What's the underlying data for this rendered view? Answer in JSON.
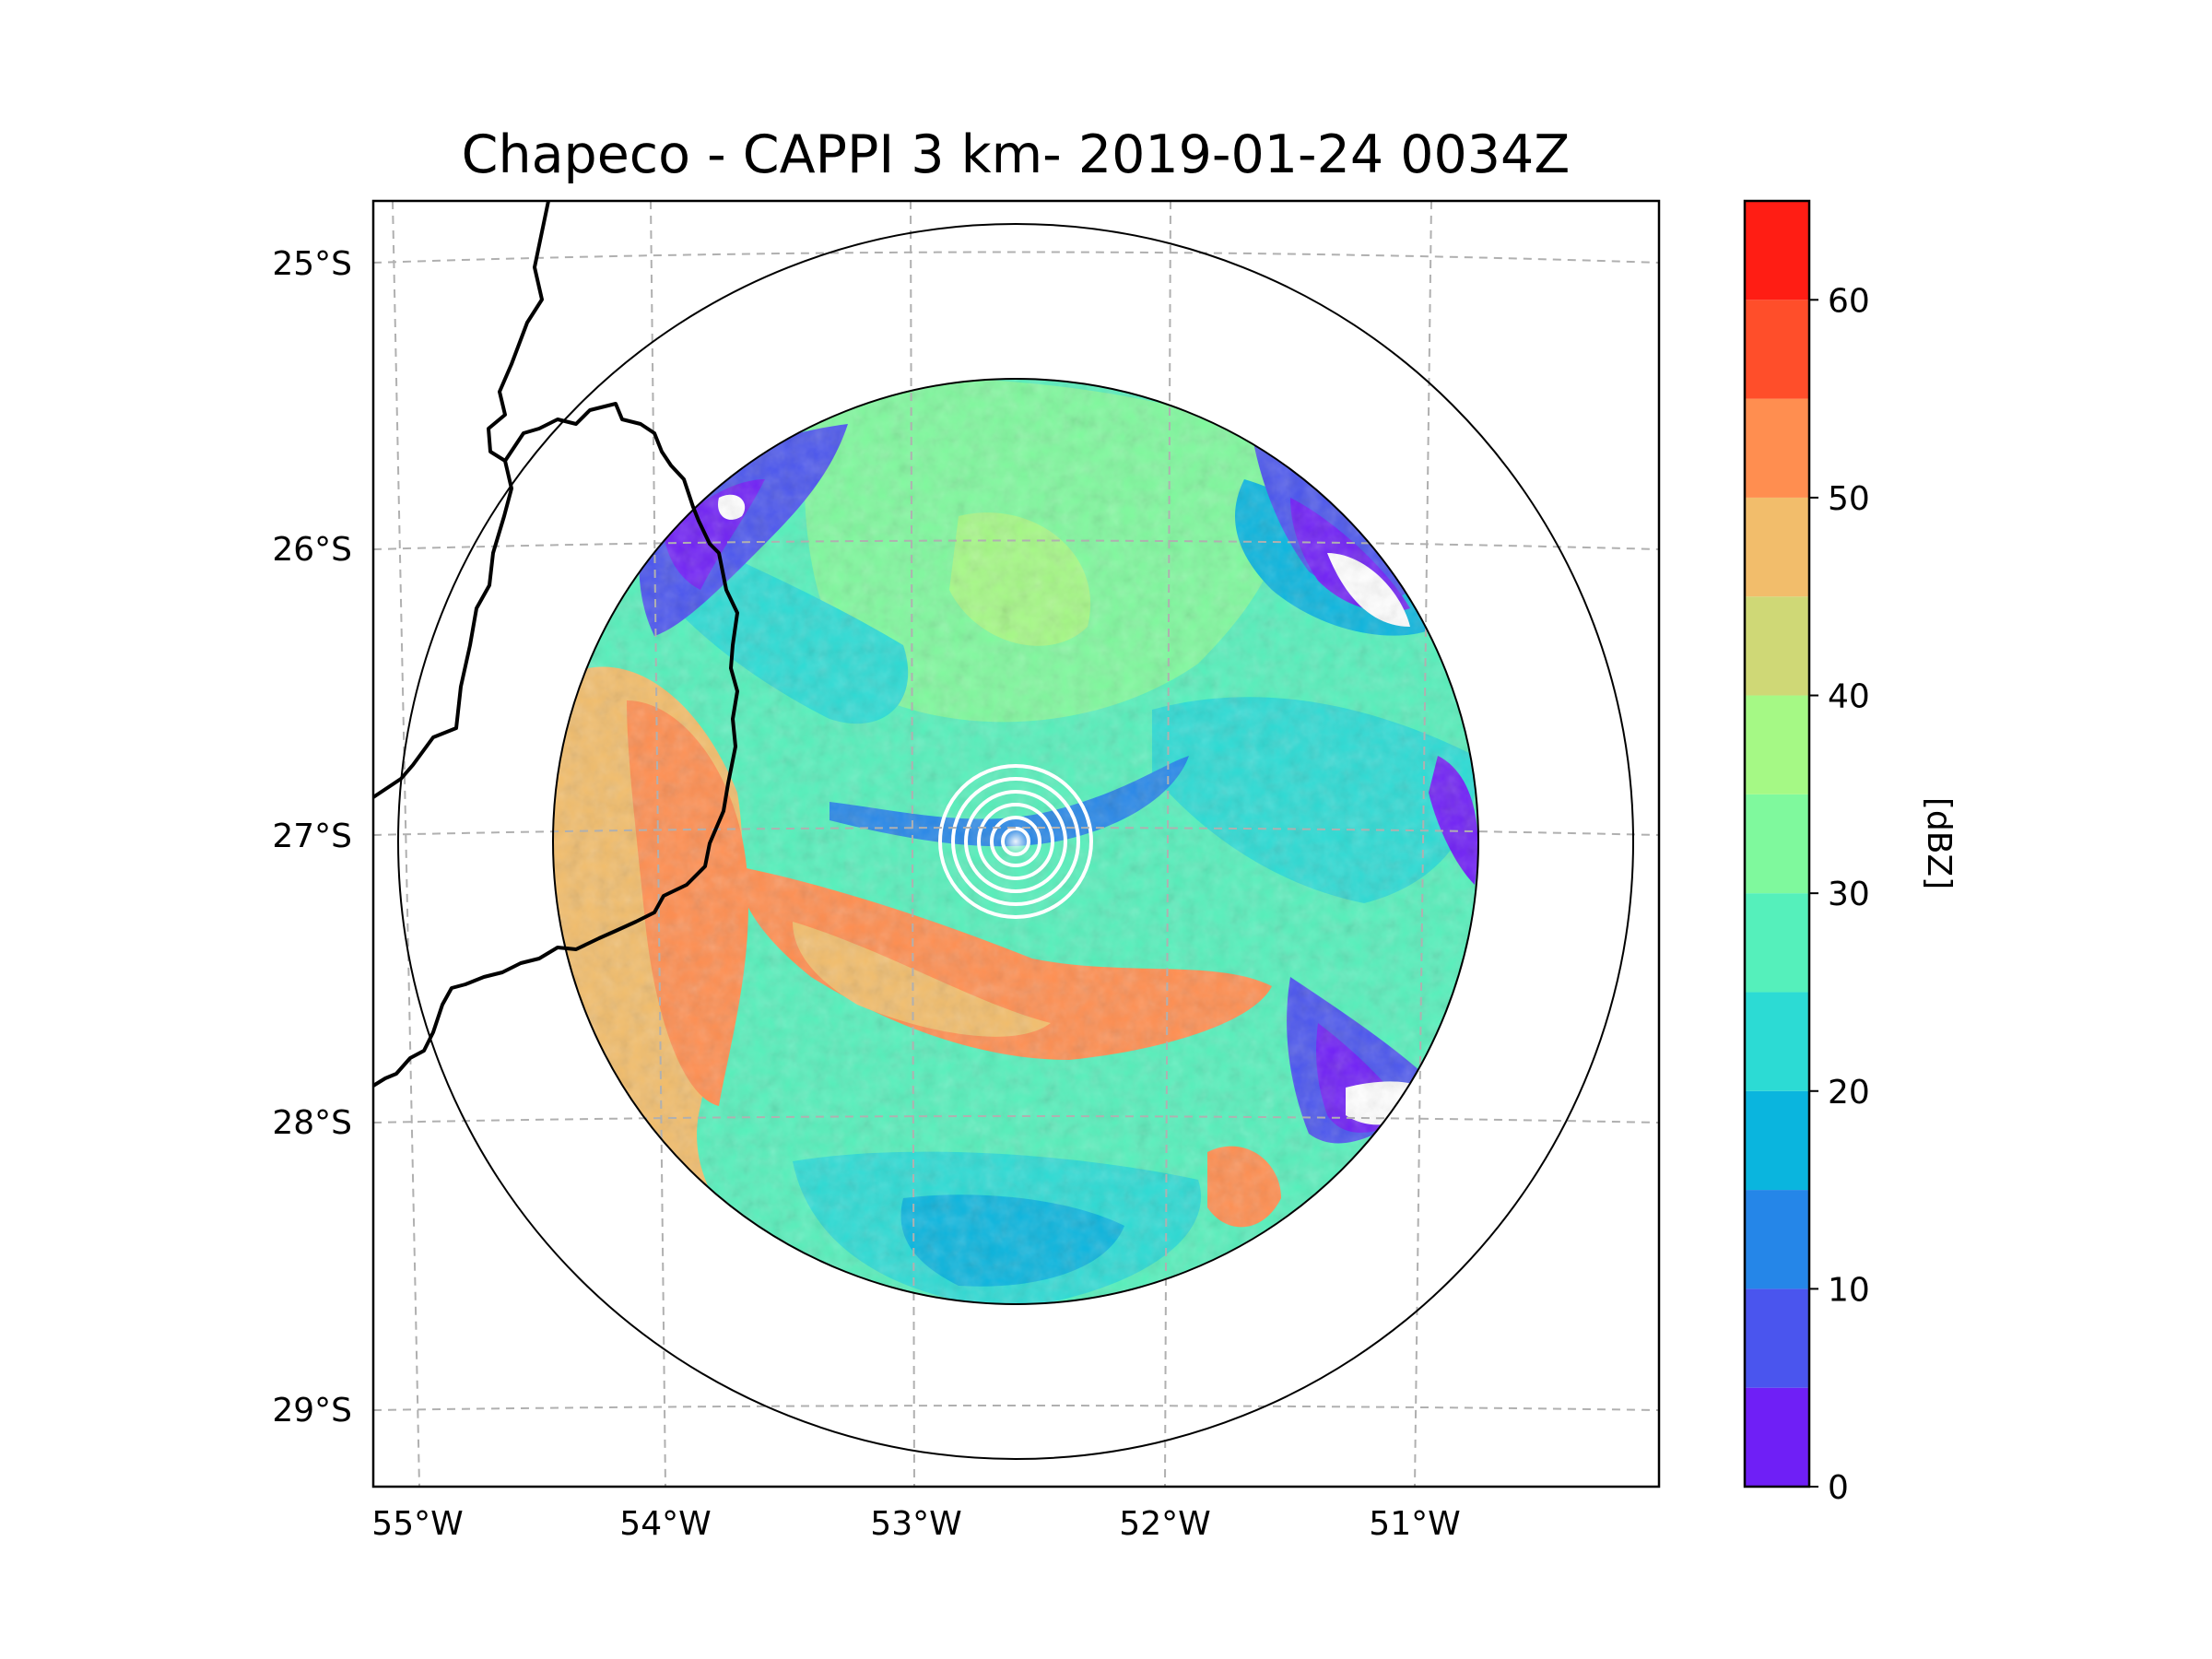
{
  "title": "Chapeco - CAPPI 3 km- 2019-01-24 0034Z",
  "map": {
    "lon_labels": [
      "55°W",
      "54°W",
      "53°W",
      "52°W",
      "51°W"
    ],
    "lat_labels": [
      "25°S",
      "26°S",
      "27°S",
      "28°S",
      "29°S"
    ],
    "radar_site": "Chapeco",
    "product": "CAPPI 3 km"
  },
  "colorbar": {
    "label": "[dBZ]",
    "ticks": [
      "0",
      "10",
      "20",
      "30",
      "40",
      "50",
      "60"
    ],
    "min": 0,
    "max": 65,
    "step": 5,
    "colors": [
      "#6f1ff6",
      "#4a55ee",
      "#2586e8",
      "#0ab5de",
      "#2cdbd4",
      "#55f0bb",
      "#7ff99d",
      "#a5f985",
      "#cfd876",
      "#f2bd6b",
      "#ff8e50",
      "#ff4e2a",
      "#ff1d14"
    ]
  },
  "colors": {
    "grid": "#b0b0b0",
    "frame": "#000000",
    "range_ring": "#000000",
    "center_rings": "#ffffff"
  }
}
